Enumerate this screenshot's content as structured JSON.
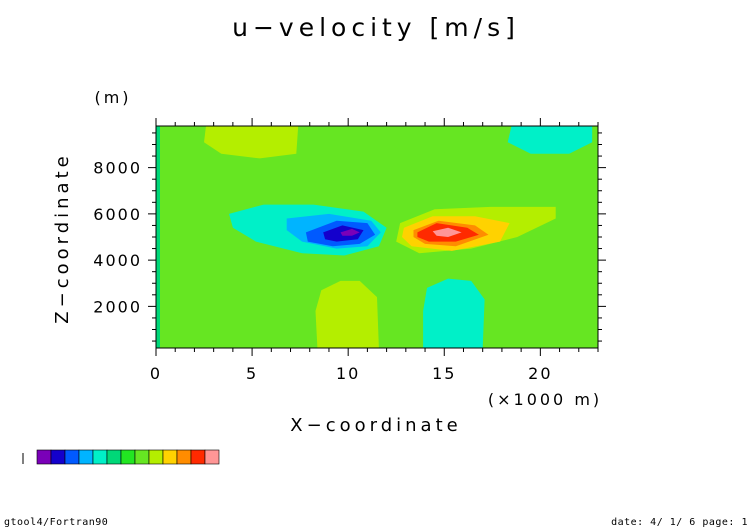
{
  "chart_data": {
    "type": "heatmap",
    "title": "u−velocity [m/s]",
    "xlabel": "X−coordinate",
    "ylabel": "Z−coordinate",
    "x_unit_label": "(×1000 m)",
    "y_unit_label": "(m)",
    "xlim": [
      0,
      23
    ],
    "ylim": [
      200,
      9800
    ],
    "x_ticks": [
      0,
      5,
      10,
      15,
      20
    ],
    "y_ticks": [
      2000,
      4000,
      6000,
      8000
    ],
    "grid": false,
    "legend": "bottom-left",
    "colorbar_colors": [
      "#7a00b8",
      "#1400cc",
      "#005aff",
      "#00b4ff",
      "#00f0c8",
      "#00d878",
      "#22e622",
      "#66e622",
      "#b4ee00",
      "#ffd200",
      "#ff8c00",
      "#ff2a00",
      "#ff9696"
    ],
    "regions": [
      {
        "value_class": "pos-weak",
        "color": "#b4ee00",
        "points": [
          [
            2.6,
            9.8
          ],
          [
            7.4,
            9.8
          ],
          [
            7.3,
            8.6
          ],
          [
            5.4,
            8.4
          ],
          [
            3.4,
            8.6
          ],
          [
            2.5,
            9.1
          ]
        ]
      },
      {
        "value_class": "neg-weak",
        "color": "#00f0c8",
        "points": [
          [
            18.5,
            9.8
          ],
          [
            22.7,
            9.8
          ],
          [
            22.7,
            9.1
          ],
          [
            21.5,
            8.6
          ],
          [
            19.5,
            8.6
          ],
          [
            18.3,
            9.1
          ]
        ]
      },
      {
        "value_class": "zero-band",
        "color": "#66e622",
        "points": [
          [
            12.4,
            9.8
          ],
          [
            15.2,
            9.8
          ],
          [
            15.3,
            8.7
          ],
          [
            13.6,
            8.4
          ],
          [
            12.4,
            8.9
          ]
        ]
      },
      {
        "value_class": "neg-weak",
        "color": "#00f0c8",
        "points": [
          [
            3.8,
            6.0
          ],
          [
            5.6,
            6.4
          ],
          [
            8.2,
            6.4
          ],
          [
            10.8,
            6.1
          ],
          [
            12.0,
            5.4
          ],
          [
            11.6,
            4.6
          ],
          [
            9.8,
            4.2
          ],
          [
            7.6,
            4.3
          ],
          [
            5.2,
            4.8
          ],
          [
            4.0,
            5.4
          ]
        ]
      },
      {
        "value_class": "neg-medium",
        "color": "#00b4ff",
        "points": [
          [
            6.8,
            5.8
          ],
          [
            9.0,
            6.0
          ],
          [
            11.2,
            5.7
          ],
          [
            11.7,
            5.2
          ],
          [
            11.0,
            4.6
          ],
          [
            9.4,
            4.5
          ],
          [
            7.6,
            4.8
          ],
          [
            6.8,
            5.3
          ]
        ]
      },
      {
        "value_class": "neg-strong",
        "color": "#005aff",
        "points": [
          [
            7.8,
            5.2
          ],
          [
            9.4,
            5.7
          ],
          [
            11.0,
            5.6
          ],
          [
            11.4,
            5.1
          ],
          [
            10.6,
            4.7
          ],
          [
            9.2,
            4.6
          ],
          [
            7.9,
            4.8
          ]
        ]
      },
      {
        "value_class": "neg-stronger",
        "color": "#1400cc",
        "points": [
          [
            8.7,
            5.2
          ],
          [
            9.7,
            5.5
          ],
          [
            10.8,
            5.3
          ],
          [
            10.5,
            4.9
          ],
          [
            9.4,
            4.8
          ],
          [
            8.8,
            4.9
          ]
        ]
      },
      {
        "value_class": "neg-peak",
        "color": "#7a00b8",
        "points": [
          [
            9.6,
            5.2
          ],
          [
            10.2,
            5.35
          ],
          [
            10.6,
            5.2
          ],
          [
            10.2,
            5.05
          ],
          [
            9.7,
            5.05
          ]
        ]
      },
      {
        "value_class": "pos-weak",
        "color": "#b4ee00",
        "points": [
          [
            12.7,
            5.6
          ],
          [
            14.5,
            6.2
          ],
          [
            17.4,
            6.3
          ],
          [
            20.8,
            6.3
          ],
          [
            20.8,
            5.8
          ],
          [
            18.8,
            5.0
          ],
          [
            16.4,
            4.5
          ],
          [
            13.7,
            4.3
          ],
          [
            12.5,
            4.8
          ]
        ]
      },
      {
        "value_class": "pos-medium",
        "color": "#ffd200",
        "points": [
          [
            12.9,
            5.4
          ],
          [
            14.4,
            5.9
          ],
          [
            16.6,
            5.9
          ],
          [
            18.4,
            5.6
          ],
          [
            17.9,
            4.8
          ],
          [
            15.4,
            4.4
          ],
          [
            13.3,
            4.6
          ],
          [
            12.8,
            5.0
          ]
        ]
      },
      {
        "value_class": "pos-strong",
        "color": "#ff8c00",
        "points": [
          [
            13.4,
            5.3
          ],
          [
            14.7,
            5.7
          ],
          [
            16.6,
            5.5
          ],
          [
            17.3,
            5.1
          ],
          [
            15.6,
            4.6
          ],
          [
            14.0,
            4.7
          ],
          [
            13.4,
            5.0
          ]
        ]
      },
      {
        "value_class": "pos-stronger",
        "color": "#ff2a00",
        "points": [
          [
            13.6,
            5.2
          ],
          [
            14.6,
            5.6
          ],
          [
            16.2,
            5.4
          ],
          [
            16.8,
            5.1
          ],
          [
            15.6,
            4.8
          ],
          [
            14.2,
            4.8
          ],
          [
            13.6,
            5.0
          ]
        ]
      },
      {
        "value_class": "pos-peak",
        "color": "#ff9696",
        "points": [
          [
            14.4,
            5.25
          ],
          [
            15.2,
            5.4
          ],
          [
            15.9,
            5.2
          ],
          [
            15.2,
            5.0
          ],
          [
            14.6,
            5.05
          ]
        ]
      },
      {
        "value_class": "pos-weak",
        "color": "#b4ee00",
        "points": [
          [
            8.4,
            0.2
          ],
          [
            11.6,
            0.2
          ],
          [
            11.5,
            2.4
          ],
          [
            10.6,
            3.1
          ],
          [
            9.6,
            3.1
          ],
          [
            8.6,
            2.7
          ],
          [
            8.3,
            1.8
          ]
        ]
      },
      {
        "value_class": "neg-weak",
        "color": "#00f0c8",
        "points": [
          [
            13.9,
            0.2
          ],
          [
            17.0,
            0.2
          ],
          [
            17.1,
            2.3
          ],
          [
            16.4,
            3.1
          ],
          [
            15.2,
            3.2
          ],
          [
            14.1,
            2.8
          ],
          [
            13.9,
            1.8
          ]
        ]
      }
    ]
  },
  "footer": {
    "left": "gtool4/Fortran90",
    "right": "date: 4/ 1/ 6 page: 1"
  },
  "colors": {
    "background_field": "#66e622",
    "left_strip": "#00d878"
  }
}
